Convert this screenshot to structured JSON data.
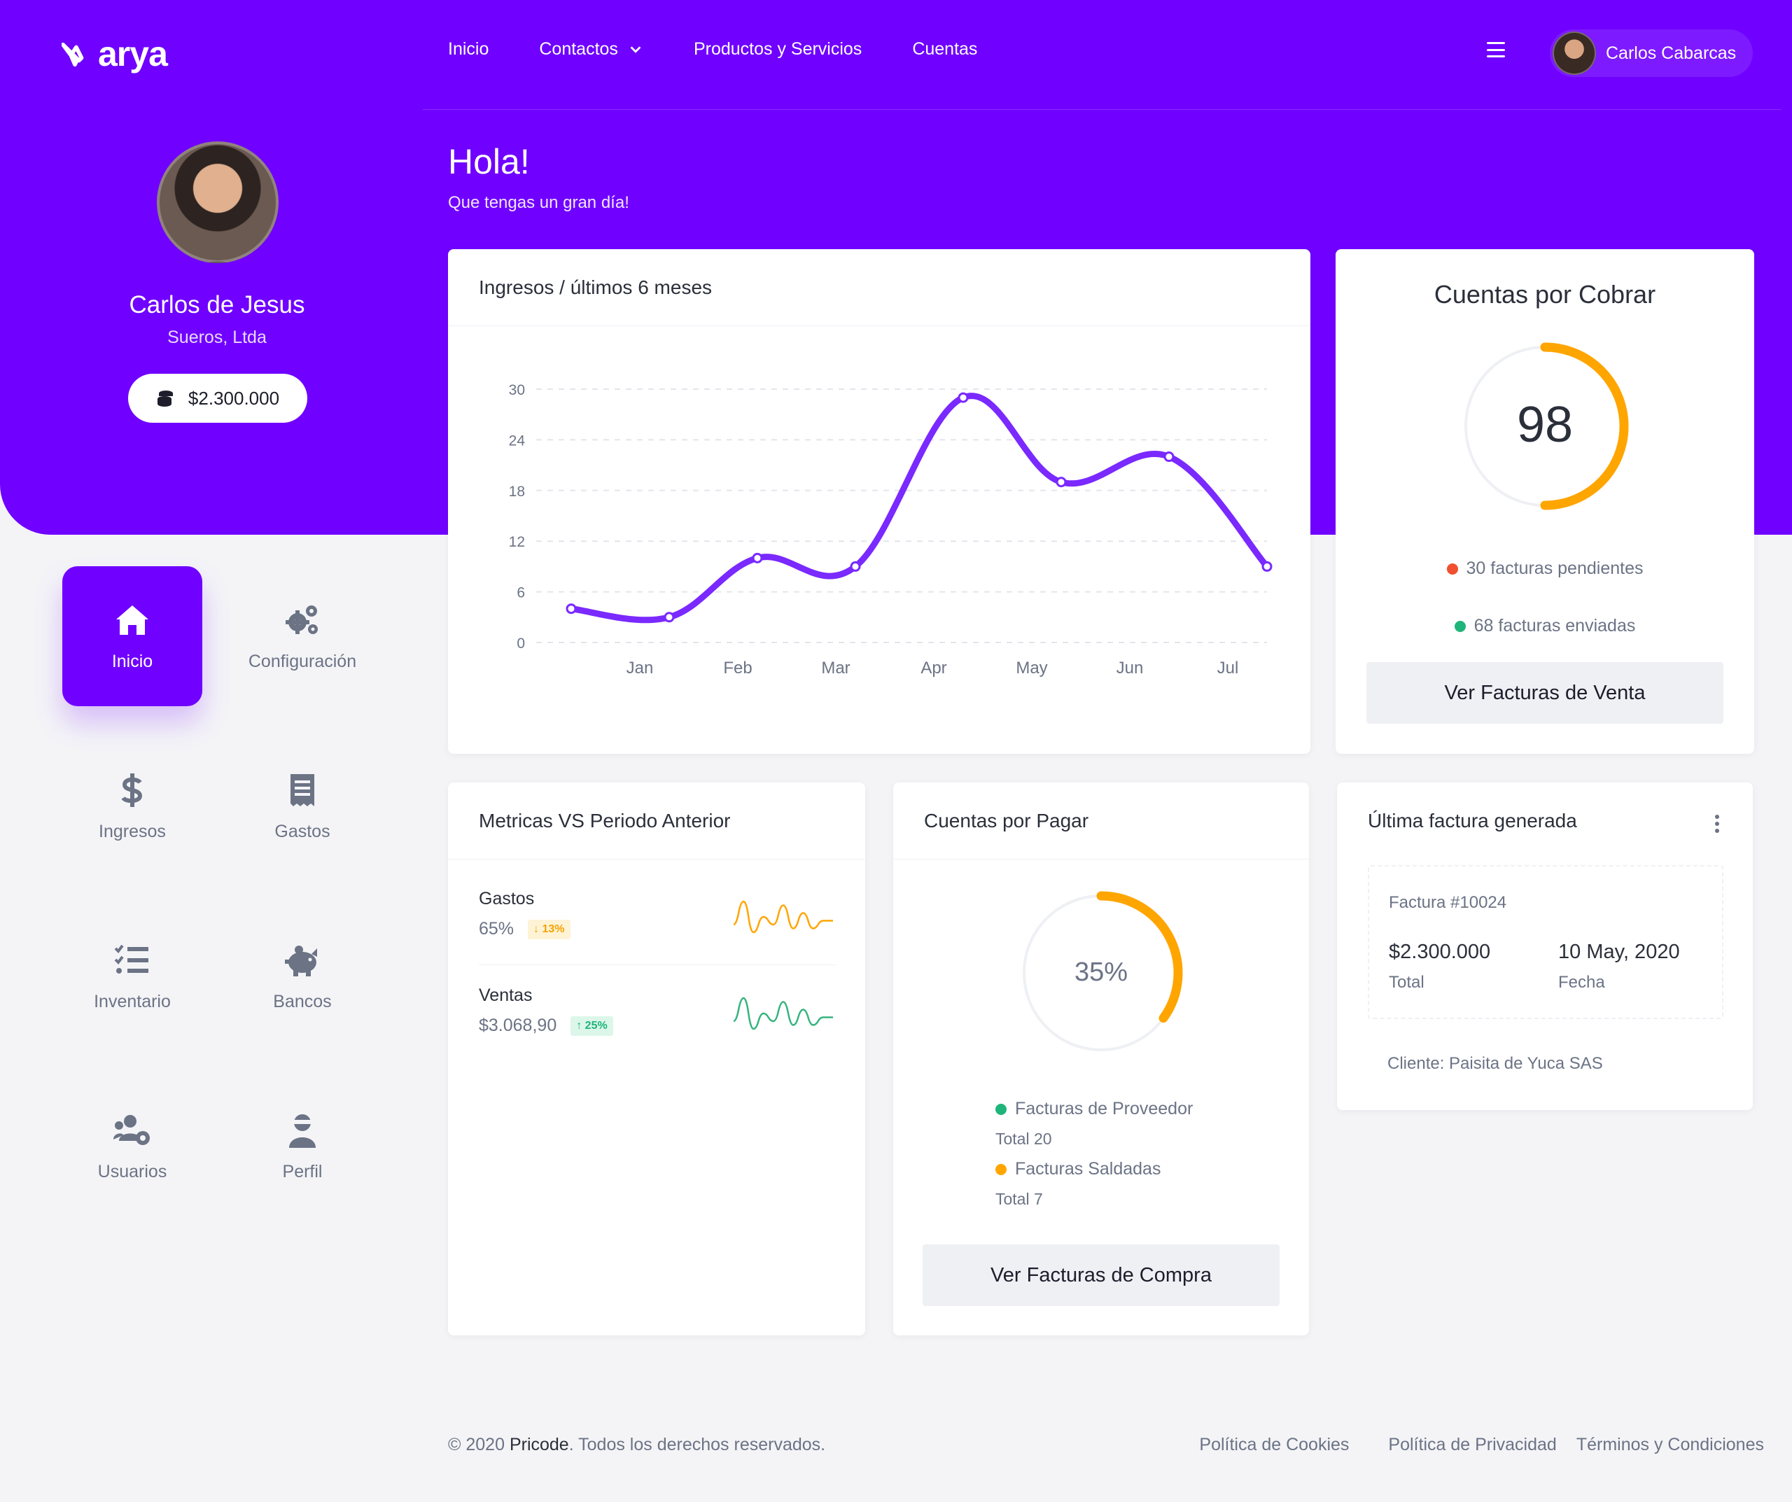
{
  "brand": {
    "name": "arya",
    "accent": "#7000ff"
  },
  "nav": {
    "items": [
      {
        "label": "Inicio"
      },
      {
        "label": "Contactos"
      },
      {
        "label": "Productos y Servicios"
      },
      {
        "label": "Cuentas"
      }
    ],
    "menu_icon": "hamburger-icon",
    "user_name": "Carlos Cabarcas"
  },
  "profile": {
    "name": "Carlos de Jesus",
    "company": "Sueros, Ltda",
    "balance": "$2.300.000",
    "balance_icon": "coins-icon"
  },
  "greeting": {
    "title": "Hola!",
    "subtitle": "Que tengas un gran día!"
  },
  "sidebar": {
    "items": [
      {
        "label": "Inicio",
        "icon": "home-icon",
        "active": true
      },
      {
        "label": "Configuración",
        "icon": "gears-icon"
      },
      {
        "label": "Ingresos",
        "icon": "dollar-icon"
      },
      {
        "label": "Gastos",
        "icon": "receipt-icon"
      },
      {
        "label": "Inventario",
        "icon": "checklist-icon"
      },
      {
        "label": "Bancos",
        "icon": "piggy-bank-icon"
      },
      {
        "label": "Usuarios",
        "icon": "users-cog-icon"
      },
      {
        "label": "Perfil",
        "icon": "user-ninja-icon"
      }
    ]
  },
  "income_card": {
    "title": "Ingresos / últimos 6 meses"
  },
  "chart_data": {
    "type": "line",
    "categories": [
      "Jan",
      "Feb",
      "Mar",
      "Apr",
      "May",
      "Jun",
      "Jul"
    ],
    "x": [
      0.3,
      1.3,
      2.2,
      3.2,
      4.3,
      5.3,
      6.4,
      7.4
    ],
    "series": [
      {
        "values": [
          4,
          3,
          10,
          9,
          29,
          19,
          22,
          9
        ],
        "color": "#7a29ff"
      }
    ],
    "yticks": [
      0,
      6,
      12,
      18,
      24,
      30
    ],
    "ylim": [
      0,
      30
    ],
    "xlim": [
      0,
      7.4
    ],
    "grid": true,
    "title": "",
    "xlabel": "",
    "ylabel": ""
  },
  "cobrar": {
    "title": "Cuentas por Cobrar",
    "value": "98",
    "fraction": 0.5,
    "legend": [
      {
        "label": "30 facturas pendientes",
        "color": "#f0502f"
      },
      {
        "label": "68 facturas enviadas",
        "color": "#1fb47a"
      }
    ],
    "button": "Ver Facturas de Venta",
    "color": "#ffa500"
  },
  "metrics": {
    "title": "Metricas VS Periodo Anterior",
    "rows": [
      {
        "label": "Gastos",
        "value": "65%",
        "badge": "13%",
        "direction": "down",
        "color": "#ffa500",
        "points": [
          14,
          2,
          18,
          10,
          14,
          4,
          16,
          8,
          16,
          12,
          12
        ]
      },
      {
        "label": "Ventas",
        "value": "$3.068,90",
        "badge": "25%",
        "direction": "up",
        "color": "#36b37e",
        "points": [
          14,
          2,
          18,
          10,
          14,
          4,
          16,
          8,
          16,
          12,
          12
        ]
      }
    ]
  },
  "pagar": {
    "title": "Cuentas por Pagar",
    "value": "35%",
    "fraction": 0.35,
    "color": "#ffa500",
    "legend": [
      {
        "label": "Facturas de Proveedor",
        "sub": "Total 20",
        "color": "#1fb47a"
      },
      {
        "label": "Facturas Saldadas",
        "sub": "Total 7",
        "color": "#ffa500"
      }
    ],
    "button": "Ver Facturas de Compra"
  },
  "last_invoice": {
    "title": "Última factura generada",
    "number": "Factura #10024",
    "amount": "$2.300.000",
    "amount_label": "Total",
    "date": "10 May, 2020",
    "date_label": "Fecha",
    "client": "Cliente: Paisita de Yuca SAS"
  },
  "footer": {
    "copyright_pre": "© 2020",
    "company": "Pricode",
    "copyright_post": ". Todos los derechos reservados.",
    "links": [
      "Política de Cookies",
      "Política de Privacidad",
      "Términos y Condiciones"
    ]
  }
}
